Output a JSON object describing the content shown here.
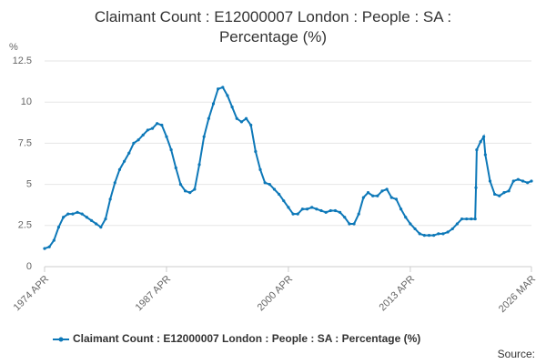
{
  "chart_data": {
    "type": "line",
    "title": "Claimant Count : E12000007 London : People : SA : Percentage (%)",
    "y_label": "%",
    "source_label": "Source:",
    "ylim": [
      0,
      12.5
    ],
    "yticks": [
      0,
      2.5,
      5,
      7.5,
      10,
      12.5
    ],
    "xlim": [
      "1974 APR",
      "2026 MAR"
    ],
    "xticks": [
      "1974 APR",
      "1987 APR",
      "2000 APR",
      "2013 APR",
      "2026 MAR"
    ],
    "grid": true,
    "legend": "bottom",
    "x": [
      "1974 APR",
      "1974 OCT",
      "1975 APR",
      "1975 OCT",
      "1976 APR",
      "1976 OCT",
      "1977 APR",
      "1977 OCT",
      "1978 APR",
      "1978 OCT",
      "1979 APR",
      "1979 OCT",
      "1980 APR",
      "1980 OCT",
      "1981 APR",
      "1981 OCT",
      "1982 APR",
      "1982 OCT",
      "1983 APR",
      "1983 OCT",
      "1984 APR",
      "1984 OCT",
      "1985 APR",
      "1985 OCT",
      "1986 APR",
      "1986 OCT",
      "1987 APR",
      "1987 OCT",
      "1988 APR",
      "1988 OCT",
      "1989 APR",
      "1989 OCT",
      "1990 APR",
      "1990 OCT",
      "1991 APR",
      "1991 OCT",
      "1992 APR",
      "1992 OCT",
      "1993 APR",
      "1993 OCT",
      "1994 APR",
      "1994 OCT",
      "1995 APR",
      "1995 OCT",
      "1996 APR",
      "1996 OCT",
      "1997 APR",
      "1997 OCT",
      "1998 APR",
      "1998 OCT",
      "1999 APR",
      "1999 OCT",
      "2000 APR",
      "2000 OCT",
      "2001 APR",
      "2001 OCT",
      "2002 APR",
      "2002 OCT",
      "2003 APR",
      "2003 OCT",
      "2004 APR",
      "2004 OCT",
      "2005 APR",
      "2005 OCT",
      "2006 APR",
      "2006 OCT",
      "2007 APR",
      "2007 OCT",
      "2008 APR",
      "2008 OCT",
      "2009 APR",
      "2009 OCT",
      "2010 APR",
      "2010 OCT",
      "2011 APR",
      "2011 OCT",
      "2012 APR",
      "2012 OCT",
      "2013 APR",
      "2013 OCT",
      "2014 APR",
      "2014 OCT",
      "2015 APR",
      "2015 OCT",
      "2016 APR",
      "2016 OCT",
      "2017 APR",
      "2017 OCT",
      "2018 APR",
      "2018 OCT",
      "2019 APR",
      "2019 OCT",
      "2020 MAR",
      "2020 APR",
      "2020 MAY",
      "2020 OCT",
      "2021 FEB",
      "2021 APR",
      "2021 OCT",
      "2022 APR",
      "2022 OCT",
      "2023 APR",
      "2023 OCT",
      "2024 APR",
      "2024 OCT",
      "2025 APR",
      "2025 OCT",
      "2026 MAR"
    ],
    "series": [
      {
        "name": "Claimant Count : E12000007 London : People : SA : Percentage (%)",
        "color": "#0d78b8",
        "values": [
          1.1,
          1.2,
          1.6,
          2.4,
          3.0,
          3.2,
          3.2,
          3.3,
          3.2,
          3.0,
          2.8,
          2.6,
          2.4,
          2.9,
          4.1,
          5.1,
          5.9,
          6.4,
          6.9,
          7.5,
          7.7,
          8.0,
          8.3,
          8.4,
          8.7,
          8.6,
          7.9,
          7.1,
          6.0,
          5.0,
          4.6,
          4.5,
          4.7,
          6.2,
          7.9,
          9.0,
          9.9,
          10.8,
          10.9,
          10.4,
          9.7,
          9.0,
          8.8,
          9.0,
          8.6,
          7.0,
          5.9,
          5.1,
          5.0,
          4.7,
          4.4,
          4.0,
          3.6,
          3.2,
          3.2,
          3.5,
          3.5,
          3.6,
          3.5,
          3.4,
          3.3,
          3.4,
          3.4,
          3.3,
          3.0,
          2.6,
          2.6,
          3.2,
          4.2,
          4.5,
          4.3,
          4.3,
          4.6,
          4.7,
          4.2,
          4.1,
          3.5,
          3.0,
          2.6,
          2.3,
          2.0,
          1.9,
          1.9,
          1.9,
          2.0,
          2.0,
          2.1,
          2.3,
          2.6,
          2.9,
          2.9,
          2.9,
          2.9,
          4.8,
          7.1,
          7.6,
          7.9,
          6.8,
          5.2,
          4.4,
          4.3,
          4.5,
          4.6,
          5.2,
          5.3,
          5.2,
          5.1,
          5.2
        ]
      }
    ]
  }
}
